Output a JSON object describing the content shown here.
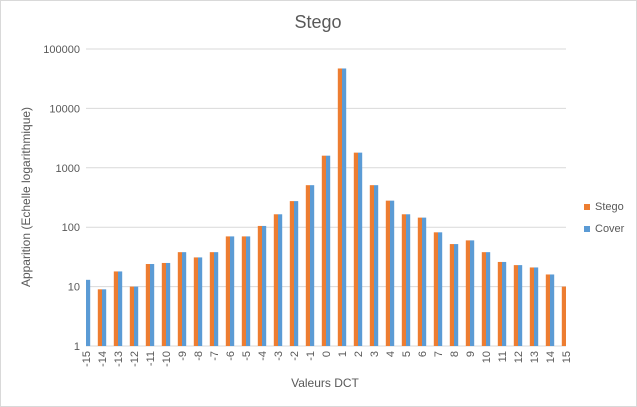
{
  "chart_data": {
    "type": "bar",
    "title": "Stego",
    "xlabel": "Valeurs DCT",
    "ylabel": "Apparition (Echelle logarithmique)",
    "yscale": "log",
    "ylim": [
      1,
      100000
    ],
    "y_ticks": [
      "1",
      "10",
      "100",
      "1000",
      "10000",
      "100000"
    ],
    "categories": [
      "-15",
      "-14",
      "-13",
      "-12",
      "-11",
      "-10",
      "-9",
      "-8",
      "-7",
      "-6",
      "-5",
      "-4",
      "-3",
      "-2",
      "-1",
      "0",
      "1",
      "2",
      "3",
      "4",
      "5",
      "6",
      "7",
      "8",
      "9",
      "10",
      "11",
      "12",
      "13",
      "14",
      "15"
    ],
    "series": [
      {
        "name": "Stego",
        "color": "#ED7D31",
        "values": [
          null,
          9,
          18,
          10,
          24,
          25,
          38,
          31,
          38,
          70,
          70,
          105,
          165,
          275,
          510,
          1600,
          47000,
          1800,
          510,
          280,
          165,
          145,
          82,
          52,
          60,
          38,
          26,
          23,
          21,
          16,
          10
        ]
      },
      {
        "name": "Cover",
        "color": "#5B9BD5",
        "values": [
          13,
          9,
          18,
          10,
          24,
          25,
          38,
          31,
          38,
          70,
          70,
          105,
          165,
          275,
          510,
          1600,
          47000,
          1800,
          510,
          280,
          165,
          145,
          82,
          52,
          60,
          38,
          26,
          23,
          21,
          16,
          null
        ]
      }
    ],
    "grid": true,
    "legend_position": "right"
  }
}
